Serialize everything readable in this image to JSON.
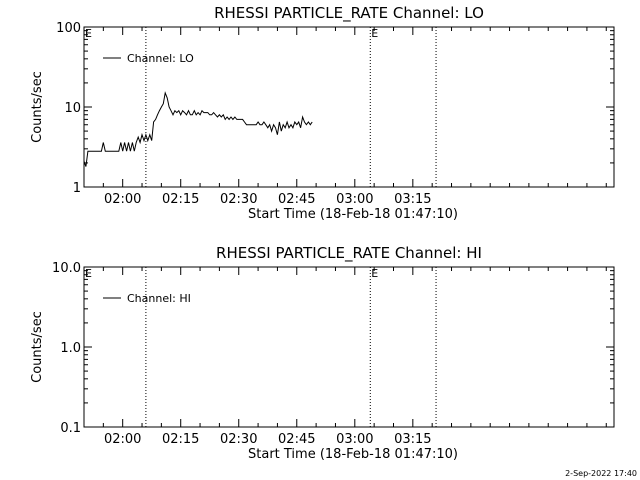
{
  "footer_timestamp": "2-Sep-2022 17:40",
  "chart_data": [
    {
      "type": "line",
      "title": "RHESSI PARTICLE_RATE Channel: LO",
      "xlabel": "Start Time (18-Feb-18 01:47:10)",
      "ylabel": "Counts/sec",
      "yscale": "log",
      "ylim": [
        1,
        100
      ],
      "yticks": [
        1,
        10,
        100
      ],
      "ytick_labels": [
        "1",
        "10",
        "100"
      ],
      "xlim_minutes": [
        110,
        247
      ],
      "xticks_minutes": [
        120,
        135,
        150,
        165,
        180,
        195
      ],
      "xtick_labels": [
        "02:00",
        "02:15",
        "02:30",
        "02:45",
        "03:00",
        "03:15"
      ],
      "vlines_minutes": [
        126,
        184,
        201
      ],
      "e_marks": [
        {
          "text": "E",
          "x_minute": 110
        },
        {
          "text": "E",
          "x_minute": 184
        }
      ],
      "legend": {
        "position": "top-left",
        "entries": [
          "Channel: LO"
        ]
      },
      "series": [
        {
          "name": "Channel: LO",
          "x": [
            110,
            110.5,
            111,
            111.5,
            112,
            112.5,
            113,
            113.5,
            114,
            114.5,
            115,
            115.5,
            116,
            116.5,
            117,
            117.5,
            118,
            118.5,
            119,
            119.5,
            120,
            120.5,
            121,
            121.5,
            122,
            122.5,
            123,
            123.5,
            124,
            124.5,
            125,
            125.5,
            126,
            126.5,
            127,
            127.5,
            128,
            128.5,
            129,
            129.5,
            130,
            130.5,
            131,
            131.5,
            132,
            132.5,
            133,
            133.5,
            134,
            134.5,
            135,
            135.5,
            136,
            136.5,
            137,
            137.5,
            138,
            138.5,
            139,
            139.5,
            140,
            140.5,
            141,
            141.5,
            142,
            142.5,
            143,
            143.5,
            144,
            144.5,
            145,
            145.5,
            146,
            146.5,
            147,
            147.5,
            148,
            148.5,
            149,
            149.5,
            150,
            150.5,
            151,
            151.5,
            152,
            152.5,
            153,
            153.5,
            154,
            154.5,
            155,
            155.5,
            156,
            156.5,
            157,
            157.5,
            158,
            158.5,
            159,
            159.5,
            160,
            160.5,
            161,
            161.5,
            162,
            162.5,
            163,
            163.5,
            164,
            164.5,
            165,
            165.5,
            166,
            166.5,
            167,
            167.5,
            168,
            168.5,
            169
          ],
          "values": [
            2.1,
            1.8,
            2.8,
            2.8,
            2.8,
            2.8,
            2.8,
            2.8,
            2.8,
            2.8,
            3.6,
            2.8,
            2.8,
            2.8,
            2.8,
            2.8,
            2.8,
            2.8,
            2.8,
            3.6,
            2.8,
            3.6,
            2.8,
            3.6,
            2.8,
            3.6,
            2.8,
            3.6,
            4.2,
            3.6,
            4.5,
            3.8,
            4.5,
            3.8,
            4.5,
            3.8,
            6.5,
            7,
            8,
            9,
            10,
            11,
            15,
            13,
            10,
            9,
            8,
            9,
            8.5,
            9,
            8,
            9,
            8.5,
            8,
            9,
            8,
            8,
            9,
            8,
            8.5,
            8,
            9,
            8.5,
            8.5,
            8.5,
            8,
            8,
            8.5,
            8,
            7.5,
            8,
            7.5,
            8,
            7,
            7.5,
            7,
            7.5,
            7,
            7.5,
            7,
            7,
            7,
            7,
            6.5,
            6,
            6,
            6,
            6,
            6,
            6,
            6.5,
            6,
            6,
            6.5,
            6,
            5.5,
            6,
            5,
            6,
            5.5,
            4.5,
            6.5,
            5,
            6,
            5.5,
            6.5,
            5.5,
            6,
            5.5,
            6.5,
            6,
            6.5,
            5.5,
            7.5,
            6.5,
            6,
            6.5,
            6,
            6.5
          ]
        }
      ]
    },
    {
      "type": "line",
      "title": "RHESSI PARTICLE_RATE Channel: HI",
      "xlabel": "Start Time (18-Feb-18 01:47:10)",
      "ylabel": "Counts/sec",
      "yscale": "log",
      "ylim": [
        0.1,
        10
      ],
      "yticks": [
        0.1,
        1,
        10
      ],
      "ytick_labels": [
        "0.1",
        "1.0",
        "10.0"
      ],
      "xlim_minutes": [
        110,
        247
      ],
      "xticks_minutes": [
        120,
        135,
        150,
        165,
        180,
        195
      ],
      "xtick_labels": [
        "02:00",
        "02:15",
        "02:30",
        "02:45",
        "03:00",
        "03:15"
      ],
      "vlines_minutes": [
        126,
        184,
        201
      ],
      "e_marks": [
        {
          "text": "E",
          "x_minute": 110
        },
        {
          "text": "E",
          "x_minute": 184
        }
      ],
      "legend": {
        "position": "top-left",
        "entries": [
          "Channel: HI"
        ]
      },
      "series": [
        {
          "name": "Channel: HI",
          "x": [],
          "values": []
        }
      ]
    }
  ]
}
